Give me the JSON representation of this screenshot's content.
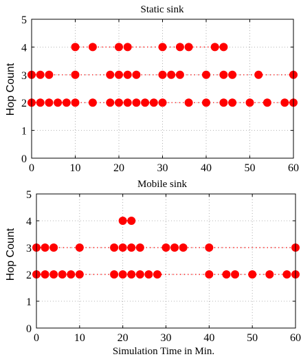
{
  "chart_data": [
    {
      "type": "scatter",
      "title": "Static sink",
      "xlabel": "",
      "ylabel": "Hop Count",
      "xlim": [
        0,
        60
      ],
      "ylim": [
        0,
        5
      ],
      "xticks": [
        0,
        10,
        20,
        30,
        40,
        50,
        60
      ],
      "yticks": [
        0,
        1,
        2,
        3,
        4,
        5
      ],
      "grid": true,
      "series": [
        {
          "color": "#ff0000",
          "marker": "circle",
          "points": [
            [
              0,
              2
            ],
            [
              0,
              3
            ],
            [
              2,
              2
            ],
            [
              2,
              3
            ],
            [
              4,
              2
            ],
            [
              4,
              3
            ],
            [
              6,
              2
            ],
            [
              8,
              2
            ],
            [
              10,
              2
            ],
            [
              10,
              3
            ],
            [
              10,
              4
            ],
            [
              14,
              2
            ],
            [
              14,
              4
            ],
            [
              18,
              2
            ],
            [
              18,
              3
            ],
            [
              20,
              2
            ],
            [
              20,
              3
            ],
            [
              20,
              4
            ],
            [
              22,
              2
            ],
            [
              22,
              3
            ],
            [
              22,
              4
            ],
            [
              24,
              2
            ],
            [
              24,
              3
            ],
            [
              26,
              2
            ],
            [
              28,
              2
            ],
            [
              30,
              2
            ],
            [
              30,
              3
            ],
            [
              30,
              4
            ],
            [
              32,
              3
            ],
            [
              34,
              3
            ],
            [
              34,
              4
            ],
            [
              36,
              2
            ],
            [
              36,
              4
            ],
            [
              40,
              2
            ],
            [
              40,
              3
            ],
            [
              42,
              4
            ],
            [
              44,
              2
            ],
            [
              44,
              3
            ],
            [
              44,
              4
            ],
            [
              46,
              2
            ],
            [
              46,
              3
            ],
            [
              50,
              2
            ],
            [
              52,
              3
            ],
            [
              54,
              2
            ],
            [
              58,
              2
            ],
            [
              60,
              2
            ],
            [
              60,
              3
            ]
          ]
        }
      ]
    },
    {
      "type": "scatter",
      "title": "Mobile sink",
      "xlabel": "Simulation Time in Min.",
      "ylabel": "Hop Count",
      "xlim": [
        0,
        60
      ],
      "ylim": [
        0,
        5
      ],
      "xticks": [
        0,
        10,
        20,
        30,
        40,
        50,
        60
      ],
      "yticks": [
        0,
        1,
        2,
        3,
        4,
        5
      ],
      "grid": true,
      "series": [
        {
          "color": "#ff0000",
          "marker": "circle",
          "points": [
            [
              0,
              2
            ],
            [
              0,
              3
            ],
            [
              2,
              2
            ],
            [
              2,
              3
            ],
            [
              4,
              2
            ],
            [
              4,
              3
            ],
            [
              6,
              2
            ],
            [
              8,
              2
            ],
            [
              10,
              2
            ],
            [
              10,
              3
            ],
            [
              18,
              2
            ],
            [
              18,
              3
            ],
            [
              20,
              2
            ],
            [
              20,
              3
            ],
            [
              20,
              4
            ],
            [
              22,
              2
            ],
            [
              22,
              3
            ],
            [
              22,
              4
            ],
            [
              24,
              2
            ],
            [
              24,
              3
            ],
            [
              26,
              2
            ],
            [
              28,
              2
            ],
            [
              30,
              3
            ],
            [
              32,
              3
            ],
            [
              34,
              3
            ],
            [
              40,
              2
            ],
            [
              40,
              3
            ],
            [
              44,
              2
            ],
            [
              46,
              2
            ],
            [
              50,
              2
            ],
            [
              54,
              2
            ],
            [
              58,
              2
            ],
            [
              60,
              2
            ],
            [
              60,
              3
            ]
          ]
        }
      ]
    }
  ]
}
